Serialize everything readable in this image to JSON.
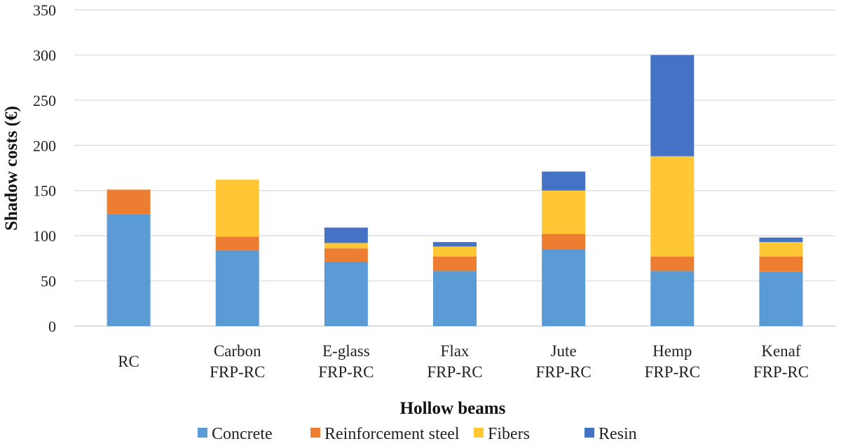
{
  "chart_data": {
    "type": "bar",
    "stacked": true,
    "categories": [
      [
        "RC"
      ],
      [
        "Carbon",
        "FRP-RC"
      ],
      [
        "E-glass",
        "FRP-RC"
      ],
      [
        "Flax",
        "FRP-RC"
      ],
      [
        "Jute",
        "FRP-RC"
      ],
      [
        "Hemp",
        "FRP-RC"
      ],
      [
        "Kenaf",
        "FRP-RC"
      ]
    ],
    "series": [
      {
        "name": "Concrete",
        "color": "#5B9BD5",
        "values": [
          124,
          84,
          71,
          61,
          85,
          61,
          60
        ]
      },
      {
        "name": "Reinforcement steel",
        "color": "#ED7D31",
        "values": [
          27,
          15,
          15,
          16,
          17,
          16,
          17
        ]
      },
      {
        "name": "Fibers",
        "color": "#FFC733",
        "values": [
          0,
          63,
          6,
          11,
          48,
          111,
          16
        ]
      },
      {
        "name": "Resin",
        "color": "#4472C4",
        "values": [
          0,
          0,
          17,
          5,
          21,
          112,
          5
        ]
      }
    ],
    "xlabel": "Hollow beams",
    "ylabel": "Shadow costs (€)",
    "ylim": [
      0,
      350
    ],
    "yticks": [
      0,
      50,
      100,
      150,
      200,
      250,
      300,
      350
    ],
    "grid": true,
    "legend_position": "bottom"
  }
}
